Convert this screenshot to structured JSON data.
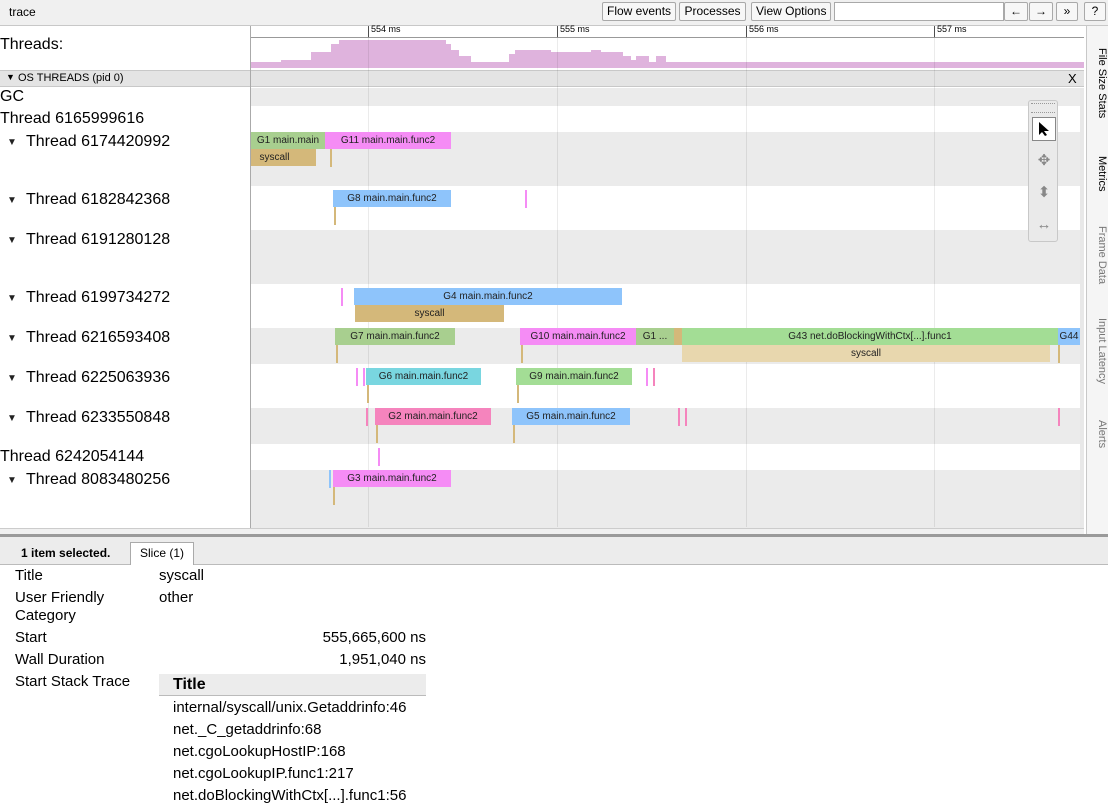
{
  "topbar": {
    "title": "trace",
    "flow_events": "Flow events",
    "processes": "Processes",
    "view_options": "View Options",
    "search_placeholder": "",
    "prev": "←",
    "next": "→",
    "more": "»",
    "help": "?"
  },
  "timeline": {
    "threads_label": "Threads:",
    "ruler": [
      "554 ms",
      "555 ms",
      "556 ms",
      "557 ms"
    ],
    "os_threads_header": "OS THREADS (pid 0)",
    "close": "X",
    "tracks": [
      {
        "label": "GC"
      },
      {
        "label": "Thread 6165999616"
      },
      {
        "label": "Thread 6174420992"
      },
      {
        "label": "Thread 6182842368"
      },
      {
        "label": "Thread 6191280128"
      },
      {
        "label": "Thread 6199734272"
      },
      {
        "label": "Thread 6216593408"
      },
      {
        "label": "Thread 6225063936"
      },
      {
        "label": "Thread 6233550848"
      },
      {
        "label": "Thread 6242054144"
      },
      {
        "label": "Thread 8083480256"
      }
    ],
    "slices": {
      "t1a": "G1 main.main",
      "t1b": "G11 main.main.func2",
      "t1c": "syscall",
      "t2a": "G8 main.main.func2",
      "t4a": "G4 main.main.func2",
      "t4b": "syscall",
      "t5a": "G7 main.main.func2",
      "t5b": "G10 main.main.func2",
      "t5c": "G1 ...",
      "t5d": "G43 net.doBlockingWithCtx[...].func1",
      "t5e": "G44",
      "t5f": "syscall",
      "t6a": "G6 main.main.func2",
      "t6b": "G9 main.main.func2",
      "t7a": "G2 main.main.func2",
      "t7b": "G5 main.main.func2",
      "t9a": "G3 main.main.func2"
    }
  },
  "side_tabs": [
    "File Size Stats",
    "Metrics",
    "Frame Data",
    "Input Latency",
    "Alerts"
  ],
  "bottom": {
    "status": "1 item selected.",
    "tab": "Slice (1)",
    "fields": {
      "title_label": "Title",
      "title_value": "syscall",
      "category_label": "User Friendly Category",
      "category_value": "other",
      "start_label": "Start",
      "start_value": "555,665,600 ns",
      "duration_label": "Wall Duration",
      "duration_value": "1,951,040 ns",
      "stack_label": "Start Stack Trace"
    },
    "stack_header": "Title",
    "stack": [
      "internal/syscall/unix.Getaddrinfo:46",
      "net._C_getaddrinfo:68",
      "net.cgoLookupHostIP:168",
      "net.cgoLookupIP.func1:217",
      "net.doBlockingWithCtx[...].func1:56"
    ]
  },
  "colors": {
    "green": "#a8cf8f",
    "magenta": "#f58cf5",
    "blue": "#8ec4fb",
    "tan": "#d4b87a",
    "lightgreen": "#a3dd95",
    "pink": "#f584bd",
    "teal": "#79d6e0",
    "syscall_light": "#e8d7ae"
  }
}
